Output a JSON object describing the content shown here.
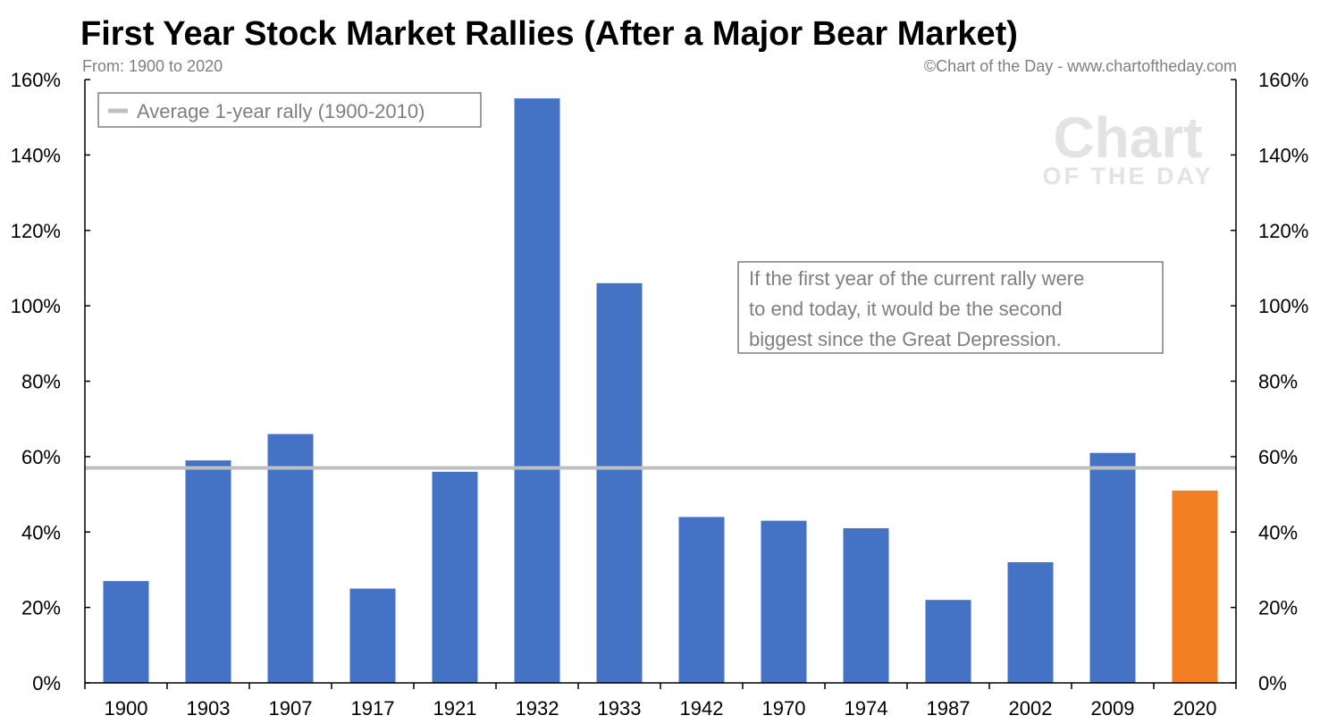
{
  "chart_data": {
    "type": "bar",
    "title": "First Year Stock Market Rallies (After a Major Bear Market)",
    "subtitle": "From: 1900 to 2020",
    "source": "©Chart of the Day - www.chartoftheday.com",
    "watermark": {
      "line1": "Chart",
      "line2": "OF THE DAY"
    },
    "categories": [
      "1900",
      "1903",
      "1907",
      "1917",
      "1921",
      "1932",
      "1933",
      "1942",
      "1970",
      "1974",
      "1987",
      "2002",
      "2009",
      "2020"
    ],
    "values": [
      27,
      59,
      66,
      25,
      56,
      155,
      106,
      44,
      43,
      41,
      22,
      32,
      61,
      51
    ],
    "bar_colors": [
      "#4472c4",
      "#4472c4",
      "#4472c4",
      "#4472c4",
      "#4472c4",
      "#4472c4",
      "#4472c4",
      "#4472c4",
      "#4472c4",
      "#4472c4",
      "#4472c4",
      "#4472c4",
      "#4472c4",
      "#f28023"
    ],
    "ylim": [
      0,
      160
    ],
    "yticks": [
      0,
      20,
      40,
      60,
      80,
      100,
      120,
      140,
      160
    ],
    "ytick_labels": [
      "0%",
      "20%",
      "40%",
      "60%",
      "80%",
      "100%",
      "120%",
      "140%",
      "160%"
    ],
    "average_line": {
      "label": "Average 1-year rally (1900-2010)",
      "value": 57,
      "color": "#bfbfbf"
    },
    "annotation": {
      "lines": [
        "If the first year of the current rally were",
        "to end today, it would be the second",
        "biggest since the Great Depression."
      ]
    },
    "legend_position": "top-left",
    "grid": false,
    "xlabel": "",
    "ylabel": ""
  }
}
